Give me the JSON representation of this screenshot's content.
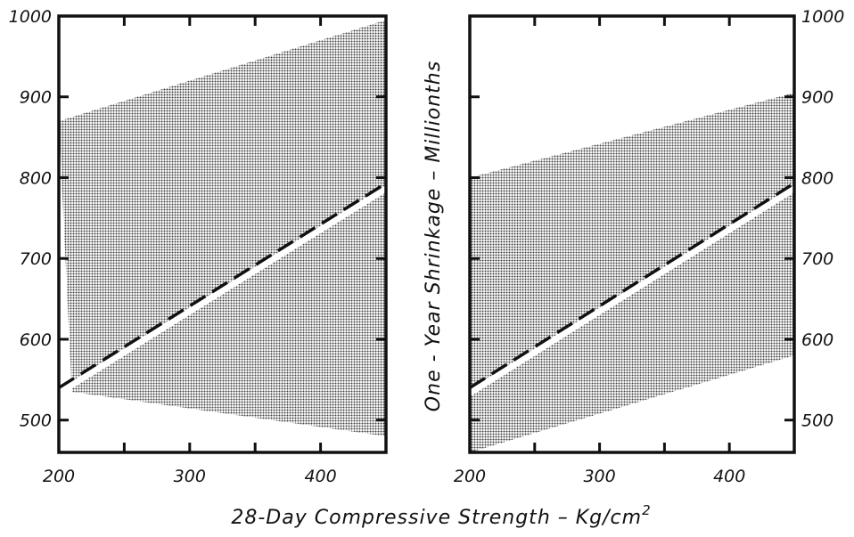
{
  "chart_data": [
    {
      "type": "area",
      "panel": "left",
      "x_range": [
        200,
        450
      ],
      "y_range": [
        460,
        1000
      ],
      "xticks": [
        200,
        300,
        400
      ],
      "yticks": [
        500,
        600,
        700,
        800,
        900,
        1000
      ],
      "ytick_side": "left",
      "band_upper": {
        "x": [
          200,
          450
        ],
        "y": [
          870,
          995
        ]
      },
      "band_lower": {
        "x": [
          210,
          450
        ],
        "y": [
          535,
          480
        ]
      },
      "line_x": [
        200,
        450
      ],
      "line_y": [
        540,
        793
      ],
      "line_style": "dashed"
    },
    {
      "type": "area",
      "panel": "right",
      "x_range": [
        200,
        450
      ],
      "y_range": [
        460,
        1000
      ],
      "xticks": [
        200,
        300,
        400
      ],
      "yticks": [
        500,
        600,
        700,
        800,
        900,
        1000
      ],
      "ytick_side": "right",
      "band_upper": {
        "x": [
          200,
          450
        ],
        "y": [
          800,
          905
        ]
      },
      "band_lower": {
        "x": [
          200,
          450
        ],
        "y": [
          460,
          580
        ]
      },
      "line_x": [
        200,
        450
      ],
      "line_y": [
        540,
        793
      ],
      "line_style": "dashed"
    }
  ],
  "xlabel_left": "28-Day  Compressive  Strength – Kg/cm",
  "xlabel_sup": "2",
  "ylabel": "One - Year  Shrinkage – Millionths",
  "colors": {
    "ink": "#111111",
    "band": "#6a6a6a",
    "background": "#ffffff"
  }
}
